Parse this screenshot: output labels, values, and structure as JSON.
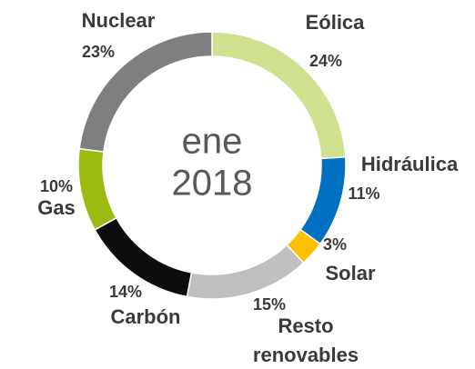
{
  "chart_data": {
    "type": "donut",
    "center_text": [
      "ene",
      "2018"
    ],
    "categories": [
      "Eólica",
      "Hidráulica",
      "Solar",
      "Resto renovables",
      "Carbón",
      "Gas",
      "Nuclear"
    ],
    "values": [
      24,
      11,
      3,
      15,
      14,
      10,
      23
    ],
    "value_labels": [
      "24%",
      "11%",
      "3%",
      "15%",
      "14%",
      "10%",
      "23%"
    ],
    "colors": [
      "#cfe08f",
      "#0070c0",
      "#ffc000",
      "#bfbfbf",
      "#0d0d0d",
      "#9bbb12",
      "#7f7f7f"
    ]
  }
}
